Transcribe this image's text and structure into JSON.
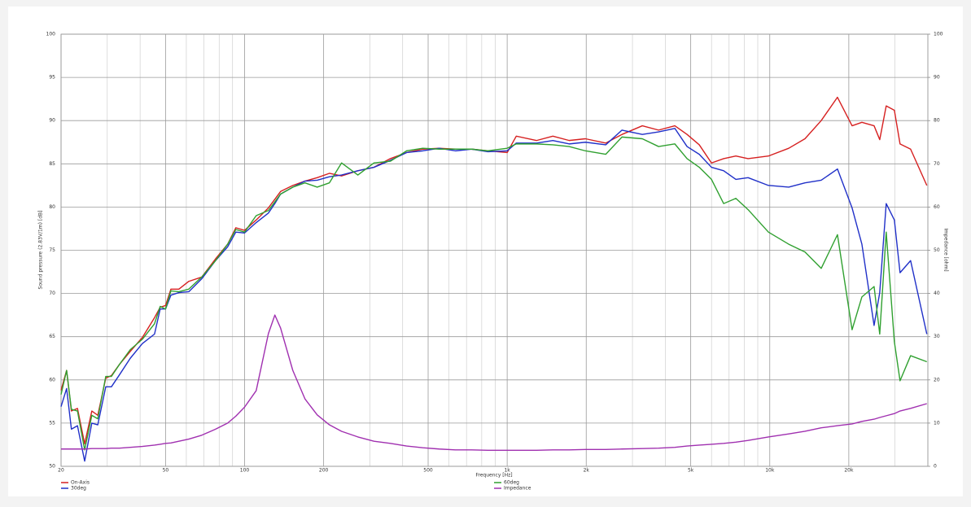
{
  "chart_data": {
    "type": "line",
    "x_label": "Frequency [Hz]",
    "y_label": "Sound pressure (2.83V/1m) [dB]",
    "y2_label": "Impedance [ohm]",
    "x_scale": "log",
    "grid": true,
    "legend": "bottom",
    "xlim": [
      20,
      40000
    ],
    "xticks": [
      20,
      50,
      100,
      200,
      500,
      {
        "value": 1000,
        "label": "1k"
      },
      {
        "value": 2000,
        "label": "2k"
      },
      {
        "value": 5000,
        "label": "5k"
      },
      {
        "value": 10000,
        "label": "10k"
      },
      {
        "value": 20000,
        "label": "20k"
      }
    ],
    "xminorticks": [
      30,
      40,
      60,
      70,
      80,
      90,
      300,
      400,
      600,
      700,
      800,
      900,
      3000,
      4000,
      6000,
      7000,
      8000,
      9000,
      30000
    ],
    "ylim": [
      50,
      100
    ],
    "yticks": [
      50,
      55,
      60,
      65,
      70,
      75,
      80,
      85,
      90,
      95,
      100
    ],
    "y2lim": [
      0,
      100
    ],
    "y2ticks": [
      0,
      10,
      20,
      30,
      40,
      50,
      60,
      70,
      80,
      90,
      100
    ],
    "x": [
      20,
      21,
      21.9,
      23.1,
      24.6,
      26.2,
      27.6,
      29.6,
      31.1,
      33.4,
      36.7,
      40.8,
      45.4,
      47.7,
      50,
      52.4,
      56.2,
      61.3,
      68.7,
      77.5,
      86.2,
      92.6,
      100,
      110.7,
      123.2,
      130.4,
      137.1,
      152.6,
      169.8,
      189,
      210.4,
      234,
      270,
      311,
      359,
      414,
      477,
      551,
      635,
      732,
      844,
      1000,
      1083,
      1295,
      1493,
      1722,
      1986,
      2373,
      2737,
      3271,
      3772,
      4350,
      4842,
      5389,
      5998,
      6675,
      7429,
      8268,
      9882,
      11810,
      13614,
      15700,
      18104,
      20580,
      22430,
      24960,
      26230,
      27760,
      29820,
      31340,
      34380,
      39640
    ],
    "series": [
      {
        "name": "On-Axis",
        "color": "#d62020",
        "values": [
          58.8,
          61.1,
          56.4,
          56.7,
          52.6,
          56.4,
          55.9,
          60.2,
          60.5,
          61.8,
          63.3,
          64.9,
          67.2,
          68.4,
          68.6,
          70.5,
          70.5,
          71.4,
          71.9,
          74.0,
          75.7,
          77.6,
          77.3,
          78.5,
          79.9,
          80.9,
          81.8,
          82.5,
          83.0,
          83.4,
          83.9,
          83.6,
          84.2,
          84.6,
          85.6,
          86.3,
          86.7,
          86.8,
          86.7,
          86.7,
          86.5,
          86.3,
          88.2,
          87.7,
          88.2,
          87.7,
          87.9,
          87.4,
          88.4,
          89.4,
          88.9,
          89.4,
          88.4,
          87.2,
          85.1,
          85.6,
          85.9,
          85.6,
          85.9,
          86.8,
          87.9,
          90.0,
          92.7,
          89.4,
          89.8,
          89.4,
          87.8,
          91.7,
          91.2,
          87.3,
          86.7,
          82.5
        ]
      },
      {
        "name": "30deg",
        "color": "#2030c8",
        "values": [
          56.9,
          59.0,
          54.3,
          54.7,
          50.6,
          55.0,
          54.8,
          59.2,
          59.2,
          60.6,
          62.5,
          64.2,
          65.3,
          68.2,
          68.2,
          69.8,
          70.1,
          70.2,
          71.7,
          73.8,
          75.4,
          77.1,
          77.0,
          78.2,
          79.3,
          80.4,
          81.5,
          82.3,
          83.0,
          83.1,
          83.5,
          83.7,
          84.2,
          84.6,
          85.4,
          86.3,
          86.5,
          86.8,
          86.5,
          86.7,
          86.4,
          86.5,
          87.4,
          87.4,
          87.7,
          87.3,
          87.5,
          87.2,
          88.9,
          88.4,
          88.7,
          89.1,
          87.0,
          86.1,
          84.6,
          84.2,
          83.2,
          83.4,
          82.5,
          82.3,
          82.8,
          83.1,
          84.4,
          79.9,
          75.7,
          66.3,
          70.1,
          80.4,
          78.5,
          72.4,
          73.8,
          65.3
        ]
      },
      {
        "name": "60deg",
        "color": "#30a030",
        "values": [
          58.3,
          61.1,
          56.6,
          56.4,
          51.9,
          55.9,
          55.5,
          60.4,
          60.4,
          61.8,
          63.5,
          64.7,
          66.5,
          68.5,
          68.2,
          70.3,
          70.2,
          70.5,
          71.9,
          73.8,
          75.7,
          77.4,
          77.1,
          79.0,
          79.6,
          80.6,
          81.5,
          82.3,
          82.8,
          82.3,
          82.8,
          85.1,
          83.7,
          85.1,
          85.3,
          86.5,
          86.8,
          86.7,
          86.7,
          86.7,
          86.5,
          86.8,
          87.3,
          87.3,
          87.2,
          87.0,
          86.5,
          86.1,
          88.1,
          87.9,
          87.0,
          87.3,
          85.6,
          84.6,
          83.2,
          80.4,
          81.0,
          79.7,
          77.1,
          75.7,
          74.8,
          72.9,
          76.8,
          65.8,
          69.6,
          70.8,
          65.3,
          77.1,
          64.4,
          59.9,
          62.8,
          62.1
        ]
      },
      {
        "name": "Impedance",
        "color": "#a030b0",
        "axis": "y2",
        "values": [
          4.0,
          4.0,
          4.0,
          4.0,
          4.0,
          4.1,
          4.1,
          4.1,
          4.2,
          4.2,
          4.4,
          4.6,
          4.9,
          5.1,
          5.3,
          5.4,
          5.8,
          6.3,
          7.2,
          8.6,
          10.0,
          11.6,
          13.7,
          17.5,
          30.7,
          35.0,
          32.0,
          22.2,
          15.6,
          11.9,
          9.6,
          8.1,
          6.8,
          5.8,
          5.3,
          4.7,
          4.3,
          4.0,
          3.8,
          3.8,
          3.7,
          3.7,
          3.7,
          3.7,
          3.8,
          3.8,
          3.9,
          3.9,
          4.0,
          4.1,
          4.2,
          4.4,
          4.7,
          4.9,
          5.1,
          5.3,
          5.6,
          6.0,
          6.8,
          7.5,
          8.1,
          8.9,
          9.4,
          9.8,
          10.4,
          10.9,
          11.3,
          11.7,
          12.2,
          12.8,
          13.4,
          14.5
        ]
      }
    ]
  }
}
